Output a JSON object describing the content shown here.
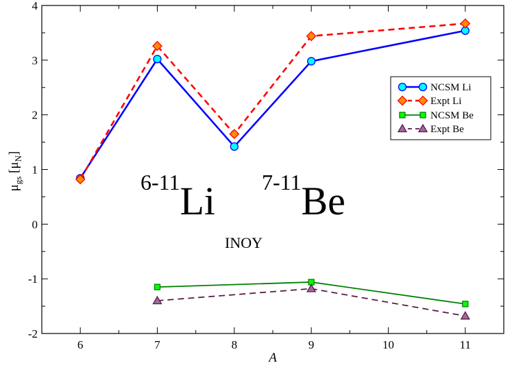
{
  "chart_data": {
    "type": "line",
    "xlabel": "A",
    "ylabel": {
      "main": "μ",
      "sub": "gs",
      "bracket_open": " [μ",
      "bracket_sub": "N",
      "bracket_close": "]"
    },
    "xlim": [
      5.5,
      11.5
    ],
    "ylim": [
      -2,
      4
    ],
    "xticks": [
      6,
      7,
      8,
      9,
      10,
      11
    ],
    "yticks": [
      -2,
      -1,
      0,
      1,
      2,
      3,
      4
    ],
    "grid": false,
    "legend_position": "top-right",
    "series": [
      {
        "name": "NCSM Li",
        "color": "#0000ff",
        "marker": "circle",
        "marker_fill": "#00ffff",
        "dash": "solid",
        "x": [
          6,
          7,
          8,
          9,
          11
        ],
        "y": [
          0.84,
          3.02,
          1.42,
          2.98,
          3.54
        ]
      },
      {
        "name": "Expt Li",
        "color": "#ff0000",
        "marker": "diamond",
        "marker_fill": "#ff8c00",
        "dash": "dashed",
        "x": [
          6,
          7,
          8,
          9,
          11
        ],
        "y": [
          0.82,
          3.26,
          1.65,
          3.44,
          3.67
        ]
      },
      {
        "name": "NCSM Be",
        "color": "#008000",
        "marker": "square",
        "marker_fill": "#00ff00",
        "dash": "solid",
        "x": [
          7,
          9,
          11
        ],
        "y": [
          -1.15,
          -1.06,
          -1.46
        ]
      },
      {
        "name": "Expt Be",
        "color": "#5a1a46",
        "marker": "triangle",
        "marker_fill": "#a06a98",
        "dash": "dashed",
        "x": [
          7,
          9,
          11
        ],
        "y": [
          -1.4,
          -1.18,
          -1.68
        ]
      }
    ],
    "annotations": {
      "li_sup": "6-11",
      "li_main": "Li",
      "be_sup": "7-11",
      "be_main": "Be",
      "interaction": "INOY"
    }
  }
}
